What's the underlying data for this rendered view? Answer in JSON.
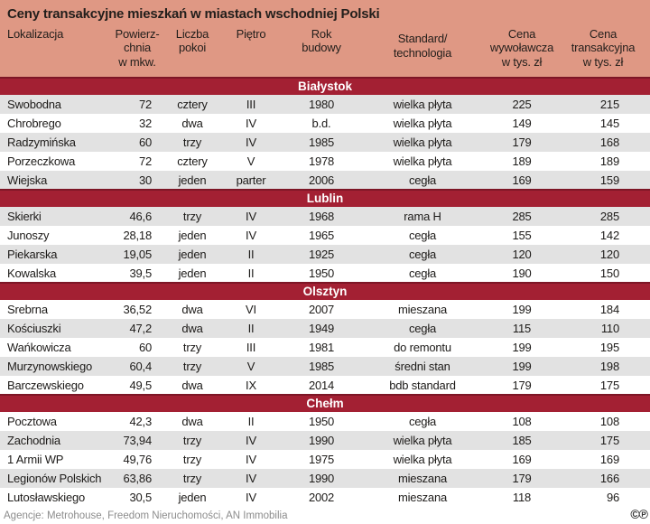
{
  "colors": {
    "header_bg": "#df9884",
    "band_bg": "#a32033",
    "band_border": "#7d1626",
    "row_alt_bg": "#e2e2e2",
    "band_text": "#ffffff",
    "text": "#1d1b19",
    "footer_text": "#8c8c8c"
  },
  "chart_data": {
    "type": "table",
    "title": "Ceny transakcyjne mieszkań w miastach wschodniej Polski",
    "columns": [
      "Lokalizacja",
      "Powierz-\nchnia\nw mkw.",
      "Liczba\npokoi",
      "Piętro",
      "Rok\nbudowy",
      "Standard/\ntechnologia",
      "Cena\nwywoławcza\nw tys. zł",
      "Cena\ntransakcyjna\nw tys. zł"
    ],
    "sections": [
      {
        "city": "Białystok",
        "first_row_shade": "gray",
        "rows": [
          [
            "Swobodna",
            "72",
            "cztery",
            "III",
            "1980",
            "wielka płyta",
            "225",
            "215"
          ],
          [
            "Chrobrego",
            "32",
            "dwa",
            "IV",
            "b.d.",
            "wielka płyta",
            "149",
            "145"
          ],
          [
            "Radzymińska",
            "60",
            "trzy",
            "IV",
            "1985",
            "wielka płyta",
            "179",
            "168"
          ],
          [
            "Porzeczkowa",
            "72",
            "cztery",
            "V",
            "1978",
            "wielka płyta",
            "189",
            "189"
          ],
          [
            "Wiejska",
            "30",
            "jeden",
            "parter",
            "2006",
            "cegła",
            "169",
            "159"
          ]
        ]
      },
      {
        "city": "Lublin",
        "first_row_shade": "gray",
        "rows": [
          [
            "Skierki",
            "46,6",
            "trzy",
            "IV",
            "1968",
            "rama H",
            "285",
            "285"
          ],
          [
            "Junoszy",
            "28,18",
            "jeden",
            "IV",
            "1965",
            "cegła",
            "155",
            "142"
          ],
          [
            "Piekarska",
            "19,05",
            "jeden",
            "II",
            "1925",
            "cegła",
            "120",
            "120"
          ],
          [
            "Kowalska",
            "39,5",
            "jeden",
            "II",
            "1950",
            "cegła",
            "190",
            "150"
          ]
        ]
      },
      {
        "city": "Olsztyn",
        "first_row_shade": "white",
        "rows": [
          [
            "Srebrna",
            "36,52",
            "dwa",
            "VI",
            "2007",
            "mieszana",
            "199",
            "184"
          ],
          [
            "Kościuszki",
            "47,2",
            "dwa",
            "II",
            "1949",
            "cegła",
            "115",
            "110"
          ],
          [
            "Wańkowicza",
            "60",
            "trzy",
            "III",
            "1981",
            "do remontu",
            "199",
            "195"
          ],
          [
            "Murzynowskiego",
            "60,4",
            "trzy",
            "V",
            "1985",
            "średni stan",
            "199",
            "198"
          ],
          [
            "Barczewskiego",
            "49,5",
            "dwa",
            "IX",
            "2014",
            "bdb standard",
            "179",
            "175"
          ]
        ]
      },
      {
        "city": "Chełm",
        "first_row_shade": "white",
        "rows": [
          [
            "Pocztowa",
            "42,3",
            "dwa",
            "II",
            "1950",
            "cegła",
            "108",
            "108"
          ],
          [
            "Zachodnia",
            "73,94",
            "trzy",
            "IV",
            "1990",
            "wielka płyta",
            "185",
            "175"
          ],
          [
            "1 Armii WP",
            "49,76",
            "trzy",
            "IV",
            "1975",
            "wielka płyta",
            "169",
            "169"
          ],
          [
            "Legionów Polskich",
            "63,86",
            "trzy",
            "IV",
            "1990",
            "mieszana",
            "179",
            "166"
          ],
          [
            "Lutosławskiego",
            "30,5",
            "jeden",
            "IV",
            "2002",
            "mieszana",
            "118",
            "96"
          ]
        ]
      }
    ],
    "source": "Agencje: Metrohouse, Freedom Nieruchomości, AN Immobilia"
  },
  "footer": {
    "source": "Agencje: Metrohouse, Freedom Nieruchomości, AN Immobilia",
    "copyright_symbol": "©",
    "phonogram_symbol": "℗"
  }
}
